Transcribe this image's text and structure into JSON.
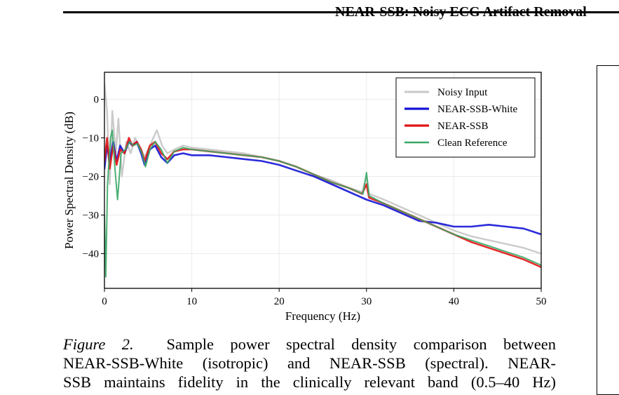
{
  "header": {
    "running_title": "NEAR-SSB: Noisy ECG Artifact Removal"
  },
  "caption": {
    "label": "Figure 2.",
    "line1": "Sample power spectral density comparison between",
    "line2": "NEAR-SSB-White (isotropic) and NEAR-SSB (spectral). NEAR-",
    "line3": "SSB maintains fidelity in the clinically relevant band (0.5–40 Hz)"
  },
  "chart_data": {
    "type": "line",
    "xlabel": "Frequency (Hz)",
    "ylabel": "Power Spectral Density (dB)",
    "xlim": [
      0,
      50
    ],
    "ylim": [
      -49,
      7
    ],
    "xticks": [
      0,
      10,
      20,
      30,
      40,
      50
    ],
    "yticks": [
      0,
      -10,
      -20,
      -30,
      -40
    ],
    "grid": true,
    "legend_position": "top-right",
    "series": [
      {
        "name": "Noisy Input",
        "color": "#c8c8c8",
        "width": 2.4,
        "points": [
          [
            0,
            4
          ],
          [
            0.3,
            -3
          ],
          [
            0.6,
            -22
          ],
          [
            0.9,
            -3
          ],
          [
            1.3,
            -14
          ],
          [
            1.6,
            -5
          ],
          [
            2.0,
            -20
          ],
          [
            2.5,
            -11
          ],
          [
            3.0,
            -14
          ],
          [
            3.5,
            -10
          ],
          [
            4.0,
            -12
          ],
          [
            4.6,
            -15
          ],
          [
            5.2,
            -12
          ],
          [
            6.0,
            -8
          ],
          [
            6.6,
            -12
          ],
          [
            7.2,
            -14
          ],
          [
            8.0,
            -13
          ],
          [
            9.0,
            -12
          ],
          [
            10,
            -12.5
          ],
          [
            12,
            -13
          ],
          [
            14,
            -13.5
          ],
          [
            16,
            -14
          ],
          [
            18,
            -15
          ],
          [
            20,
            -16
          ],
          [
            22,
            -17.5
          ],
          [
            24,
            -19.5
          ],
          [
            26,
            -21
          ],
          [
            28,
            -23
          ],
          [
            29.5,
            -24
          ],
          [
            30,
            -20
          ],
          [
            30.3,
            -24.5
          ],
          [
            32,
            -26
          ],
          [
            34,
            -28
          ],
          [
            36,
            -30
          ],
          [
            38,
            -32
          ],
          [
            40,
            -34
          ],
          [
            42,
            -35.5
          ],
          [
            44,
            -36.5
          ],
          [
            46,
            -37.5
          ],
          [
            48,
            -38.5
          ],
          [
            50,
            -40
          ]
        ]
      },
      {
        "name": "NEAR-SSB-White",
        "color": "#1414d6",
        "width": 2.6,
        "points": [
          [
            0,
            -18
          ],
          [
            0.3,
            -12
          ],
          [
            0.6,
            -16
          ],
          [
            1.0,
            -11
          ],
          [
            1.4,
            -16
          ],
          [
            1.8,
            -12
          ],
          [
            2.3,
            -14
          ],
          [
            2.8,
            -11
          ],
          [
            3.2,
            -12
          ],
          [
            3.7,
            -11
          ],
          [
            4.2,
            -14
          ],
          [
            4.6,
            -17
          ],
          [
            5.2,
            -13
          ],
          [
            5.8,
            -12
          ],
          [
            6.5,
            -15
          ],
          [
            7.2,
            -16.5
          ],
          [
            8.0,
            -14.5
          ],
          [
            9.0,
            -14
          ],
          [
            10,
            -14.5
          ],
          [
            12,
            -14.5
          ],
          [
            14,
            -15
          ],
          [
            16,
            -15.5
          ],
          [
            18,
            -16
          ],
          [
            20,
            -17
          ],
          [
            22,
            -18.5
          ],
          [
            24,
            -20
          ],
          [
            26,
            -22
          ],
          [
            28,
            -24
          ],
          [
            30,
            -26
          ],
          [
            32,
            -27.5
          ],
          [
            34,
            -29.5
          ],
          [
            36,
            -31.5
          ],
          [
            38,
            -32
          ],
          [
            40,
            -33
          ],
          [
            42,
            -33
          ],
          [
            44,
            -32.5
          ],
          [
            46,
            -33
          ],
          [
            48,
            -33.5
          ],
          [
            50,
            -35
          ]
        ]
      },
      {
        "name": "NEAR-SSB",
        "color": "#e01414",
        "width": 2.6,
        "points": [
          [
            0,
            -16
          ],
          [
            0.3,
            -10
          ],
          [
            0.6,
            -18
          ],
          [
            1.0,
            -12
          ],
          [
            1.4,
            -17
          ],
          [
            1.8,
            -13
          ],
          [
            2.3,
            -14
          ],
          [
            2.8,
            -10
          ],
          [
            3.2,
            -12
          ],
          [
            3.7,
            -11
          ],
          [
            4.2,
            -13
          ],
          [
            4.6,
            -16
          ],
          [
            5.2,
            -12
          ],
          [
            5.8,
            -11
          ],
          [
            6.5,
            -14
          ],
          [
            7.2,
            -15.5
          ],
          [
            8.0,
            -13.5
          ],
          [
            9.0,
            -13
          ],
          [
            10,
            -13
          ],
          [
            12,
            -13.5
          ],
          [
            14,
            -14
          ],
          [
            16,
            -14.5
          ],
          [
            18,
            -15
          ],
          [
            20,
            -16
          ],
          [
            22,
            -17.5
          ],
          [
            24,
            -19.5
          ],
          [
            26,
            -21.5
          ],
          [
            28,
            -23
          ],
          [
            29.5,
            -24.5
          ],
          [
            30,
            -22
          ],
          [
            30.3,
            -25.5
          ],
          [
            32,
            -27
          ],
          [
            34,
            -29
          ],
          [
            36,
            -31
          ],
          [
            38,
            -33
          ],
          [
            40,
            -35
          ],
          [
            42,
            -37
          ],
          [
            44,
            -38.5
          ],
          [
            46,
            -40
          ],
          [
            48,
            -41.5
          ],
          [
            50,
            -43.5
          ]
        ]
      },
      {
        "name": "Clean Reference",
        "color": "#3aa866",
        "width": 2.0,
        "points": [
          [
            0,
            -30
          ],
          [
            0.15,
            -46
          ],
          [
            0.35,
            -22
          ],
          [
            0.7,
            -10
          ],
          [
            0.9,
            -8
          ],
          [
            1.2,
            -18
          ],
          [
            1.5,
            -26
          ],
          [
            1.9,
            -14
          ],
          [
            2.4,
            -13
          ],
          [
            2.9,
            -11
          ],
          [
            3.3,
            -12
          ],
          [
            3.8,
            -11.5
          ],
          [
            4.3,
            -14
          ],
          [
            4.7,
            -17.5
          ],
          [
            5.2,
            -13
          ],
          [
            5.8,
            -11
          ],
          [
            6.5,
            -13
          ],
          [
            7.2,
            -16.5
          ],
          [
            8.0,
            -13.5
          ],
          [
            9.0,
            -12.5
          ],
          [
            10,
            -13
          ],
          [
            12,
            -13.5
          ],
          [
            14,
            -14
          ],
          [
            16,
            -14.5
          ],
          [
            18,
            -15
          ],
          [
            20,
            -16
          ],
          [
            22,
            -17.5
          ],
          [
            24,
            -19.5
          ],
          [
            26,
            -21.5
          ],
          [
            28,
            -23
          ],
          [
            29.6,
            -24.5
          ],
          [
            30,
            -19
          ],
          [
            30.3,
            -25
          ],
          [
            32,
            -27
          ],
          [
            34,
            -29
          ],
          [
            36,
            -31
          ],
          [
            38,
            -33
          ],
          [
            40,
            -35
          ],
          [
            42,
            -36.5
          ],
          [
            44,
            -38
          ],
          [
            46,
            -39.5
          ],
          [
            48,
            -41
          ],
          [
            50,
            -43
          ]
        ]
      }
    ]
  }
}
